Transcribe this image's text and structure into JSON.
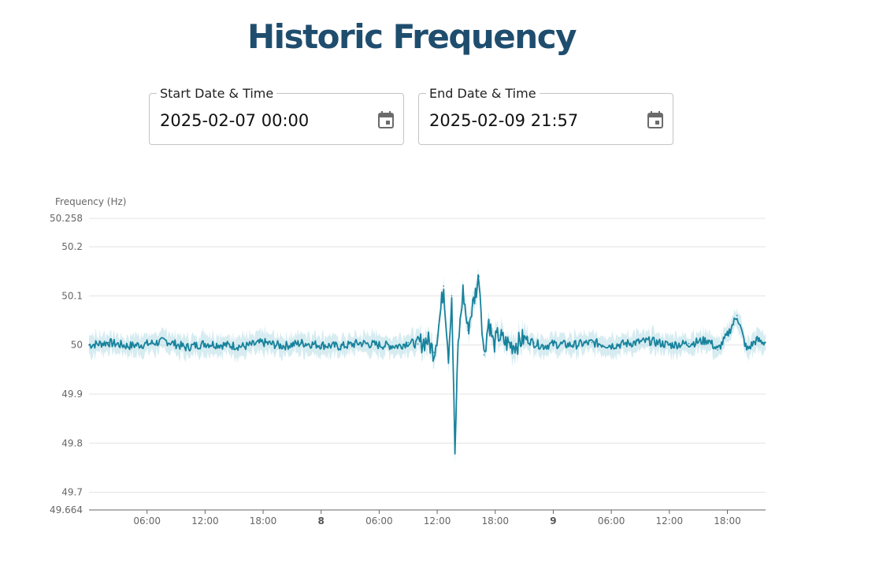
{
  "page": {
    "title": "Historic Frequency"
  },
  "start_field": {
    "label": "Start Date & Time",
    "value": "2025-02-07 00:00",
    "icon": "calendar-icon"
  },
  "end_field": {
    "label": "End Date & Time",
    "value": "2025-02-09 21:57",
    "icon": "calendar-icon"
  },
  "chart_data": {
    "type": "line",
    "ylabel": "Frequency (Hz)",
    "ylim": [
      49.664,
      50.258
    ],
    "y_ticks": [
      "50.258",
      "50.2",
      "50.1",
      "50",
      "49.9",
      "49.8",
      "49.7",
      "49.664"
    ],
    "x_range": [
      "2025-02-07 00:00",
      "2025-02-09 21:57"
    ],
    "x_ticks": [
      {
        "label": "06:00",
        "bold": false
      },
      {
        "label": "12:00",
        "bold": false
      },
      {
        "label": "18:00",
        "bold": false
      },
      {
        "label": "8",
        "bold": true
      },
      {
        "label": "06:00",
        "bold": false
      },
      {
        "label": "12:00",
        "bold": false
      },
      {
        "label": "18:00",
        "bold": false
      },
      {
        "label": "9",
        "bold": true
      },
      {
        "label": "06:00",
        "bold": false
      },
      {
        "label": "12:00",
        "bold": false
      },
      {
        "label": "18:00",
        "bold": false
      }
    ],
    "grid": true,
    "line_color": "#17829c",
    "band_color": "#b5dde6",
    "series": [
      {
        "x": [
          "2025-02-07 00:00",
          "2025-02-07 02:00",
          "2025-02-07 04:00",
          "2025-02-07 06:00",
          "2025-02-07 08:00",
          "2025-02-07 10:00",
          "2025-02-07 12:00",
          "2025-02-07 14:00",
          "2025-02-07 16:00",
          "2025-02-07 18:00",
          "2025-02-07 20:00",
          "2025-02-07 22:00",
          "2025-02-08 00:00",
          "2025-02-08 02:00",
          "2025-02-08 04:00",
          "2025-02-08 06:00",
          "2025-02-08 08:00",
          "2025-02-08 09:00",
          "2025-02-08 10:00",
          "2025-02-08 11:00",
          "2025-02-08 11:40",
          "2025-02-08 12:10",
          "2025-02-08 12:40",
          "2025-02-08 13:10",
          "2025-02-08 13:30",
          "2025-02-08 13:50",
          "2025-02-08 14:10",
          "2025-02-08 14:40",
          "2025-02-08 15:10",
          "2025-02-08 15:40",
          "2025-02-08 16:20",
          "2025-02-08 16:50",
          "2025-02-08 17:20",
          "2025-02-08 17:50",
          "2025-02-08 18:20",
          "2025-02-08 19:00",
          "2025-02-08 19:40",
          "2025-02-08 20:20",
          "2025-02-08 21:00",
          "2025-02-08 22:00",
          "2025-02-08 23:00",
          "2025-02-09 00:00",
          "2025-02-09 02:00",
          "2025-02-09 04:00",
          "2025-02-09 06:00",
          "2025-02-09 08:00",
          "2025-02-09 10:00",
          "2025-02-09 12:00",
          "2025-02-09 14:00",
          "2025-02-09 16:00",
          "2025-02-09 17:00",
          "2025-02-09 18:00",
          "2025-02-09 19:00",
          "2025-02-09 20:00",
          "2025-02-09 21:00",
          "2025-02-09 21:57"
        ],
        "y": [
          50.0,
          50.005,
          49.998,
          50.002,
          50.008,
          49.995,
          50.003,
          50.0,
          49.997,
          50.005,
          49.998,
          50.004,
          50.0,
          49.997,
          50.004,
          50.0,
          49.998,
          50.005,
          50.002,
          50.01,
          49.985,
          50.04,
          50.12,
          49.98,
          50.1,
          49.78,
          50.0,
          50.11,
          50.03,
          50.08,
          50.14,
          49.98,
          50.05,
          50.0,
          50.02,
          50.005,
          50.0,
          50.003,
          50.015,
          50.004,
          49.998,
          50.002,
          50.0,
          50.005,
          49.999,
          50.004,
          50.008,
          50.0,
          50.003,
          50.01,
          49.99,
          50.02,
          50.06,
          49.99,
          50.01,
          50.005
        ]
      }
    ]
  }
}
